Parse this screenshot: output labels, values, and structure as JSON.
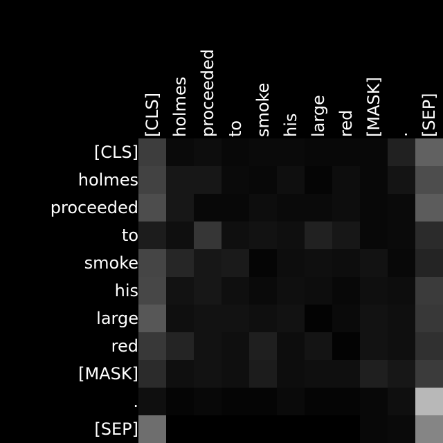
{
  "chart_data": {
    "type": "heatmap",
    "x_labels": [
      "[CLS]",
      "holmes",
      "proceeded",
      "to",
      "smoke",
      "his",
      "large",
      "red",
      "[MASK]",
      ".",
      "[SEP]"
    ],
    "y_labels": [
      "[CLS]",
      "holmes",
      "proceeded",
      "to",
      "smoke",
      "his",
      "large",
      "red",
      "[MASK]",
      ".",
      "[SEP]"
    ],
    "colormap": "grayscale",
    "value_range": [
      0,
      1
    ],
    "background": "#000000",
    "text_color": "#ffffff",
    "values": [
      [
        0.24,
        0.04,
        0.05,
        0.03,
        0.04,
        0.04,
        0.03,
        0.03,
        0.03,
        0.13,
        0.38
      ],
      [
        0.26,
        0.09,
        0.09,
        0.04,
        0.03,
        0.06,
        0.02,
        0.05,
        0.03,
        0.08,
        0.3
      ],
      [
        0.3,
        0.09,
        0.03,
        0.03,
        0.05,
        0.04,
        0.04,
        0.05,
        0.03,
        0.04,
        0.36
      ],
      [
        0.11,
        0.06,
        0.21,
        0.06,
        0.07,
        0.06,
        0.13,
        0.09,
        0.03,
        0.04,
        0.17
      ],
      [
        0.27,
        0.15,
        0.09,
        0.1,
        0.02,
        0.05,
        0.06,
        0.05,
        0.07,
        0.03,
        0.14
      ],
      [
        0.28,
        0.07,
        0.09,
        0.06,
        0.04,
        0.06,
        0.05,
        0.03,
        0.06,
        0.05,
        0.23
      ],
      [
        0.34,
        0.06,
        0.07,
        0.07,
        0.06,
        0.07,
        0.01,
        0.04,
        0.07,
        0.06,
        0.22
      ],
      [
        0.22,
        0.14,
        0.07,
        0.06,
        0.12,
        0.05,
        0.08,
        0.01,
        0.07,
        0.06,
        0.19
      ],
      [
        0.17,
        0.06,
        0.07,
        0.06,
        0.11,
        0.05,
        0.06,
        0.06,
        0.12,
        0.09,
        0.23
      ],
      [
        0.06,
        0.02,
        0.03,
        0.02,
        0.02,
        0.04,
        0.02,
        0.02,
        0.03,
        0.06,
        0.72
      ],
      [
        0.43,
        0.0,
        0.0,
        0.0,
        0.0,
        0.0,
        0.0,
        0.0,
        0.03,
        0.04,
        0.52
      ]
    ]
  }
}
